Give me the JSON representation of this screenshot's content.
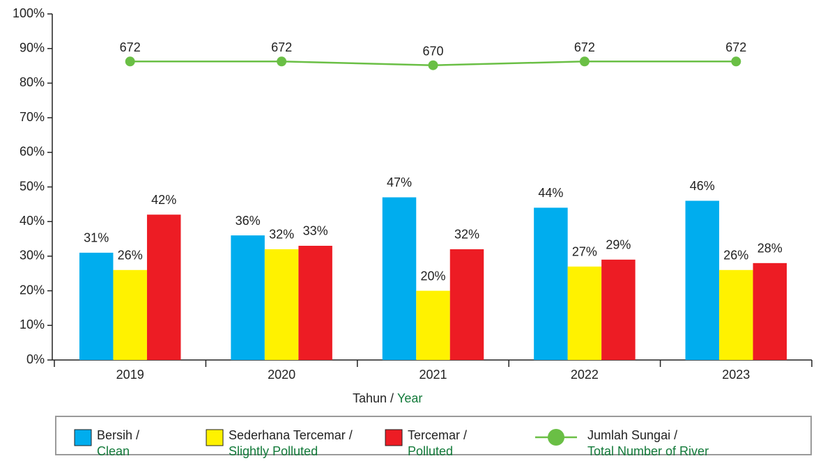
{
  "chart_data": {
    "type": "bar",
    "categories": [
      "2019",
      "2020",
      "2021",
      "2022",
      "2023"
    ],
    "series": [
      {
        "name": "Bersih /",
        "translation": "Clean",
        "color": "#00adee",
        "values": [
          31,
          36,
          47,
          44,
          46
        ],
        "value_labels": [
          "31%",
          "36%",
          "47%",
          "44%",
          "46%"
        ]
      },
      {
        "name": "Sederhana Tercemar /",
        "translation": "Slightly Polluted",
        "color": "#fff200",
        "values": [
          26,
          32,
          20,
          27,
          26
        ],
        "value_labels": [
          "26%",
          "32%",
          "20%",
          "27%",
          "26%"
        ]
      },
      {
        "name": "Tercemar /",
        "translation": "Polluted",
        "color": "#ed1c24",
        "values": [
          42,
          33,
          32,
          29,
          28
        ],
        "value_labels": [
          "42%",
          "33%",
          "32%",
          "29%",
          "28%"
        ]
      },
      {
        "name": "Jumlah Sungai /",
        "translation": "Total Number of River",
        "color": "#6abf45",
        "type": "line",
        "axis": "y2",
        "values": [
          672,
          672,
          670,
          672,
          672
        ]
      }
    ],
    "x_label": {
      "text": "Tahun /",
      "translation": "Year"
    },
    "ylim": [
      0,
      100
    ],
    "yticks": [
      {
        "value": 0,
        "label": "0%"
      },
      {
        "value": 10,
        "label": "10%"
      },
      {
        "value": 20,
        "label": "20%"
      },
      {
        "value": 30,
        "label": "30%"
      },
      {
        "value": 40,
        "label": "40%"
      },
      {
        "value": 50,
        "label": "50%"
      },
      {
        "value": 60,
        "label": "60%"
      },
      {
        "value": 70,
        "label": "70%"
      },
      {
        "value": 80,
        "label": "80%"
      },
      {
        "value": 90,
        "label": "90%"
      },
      {
        "value": 100,
        "label": "100%"
      }
    ],
    "y2lim": [
      515,
      697
    ],
    "legend": "bottom"
  }
}
